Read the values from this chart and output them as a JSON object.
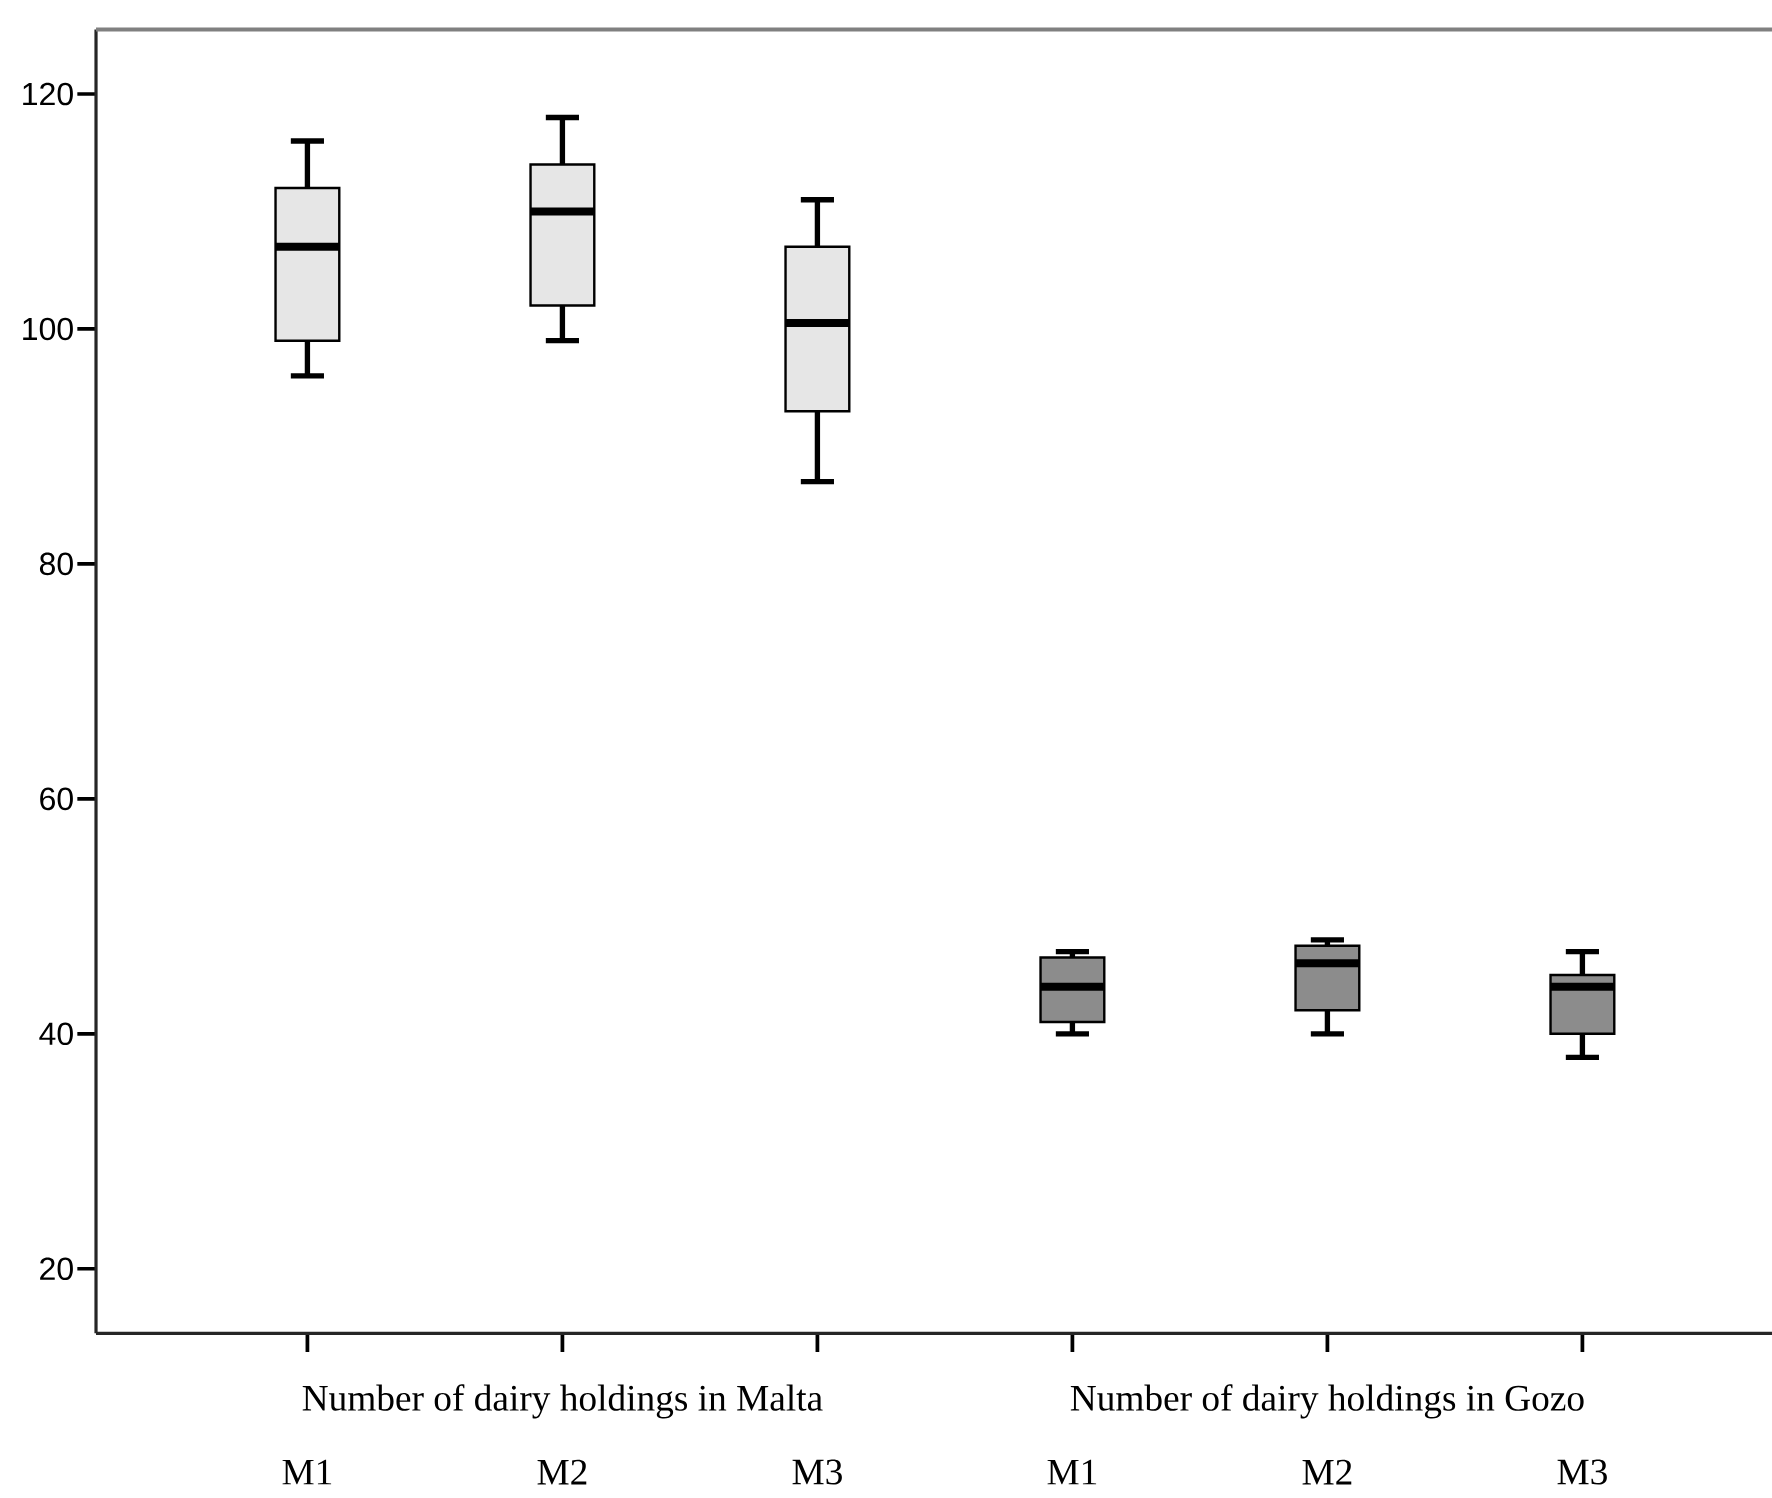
{
  "chart_data": {
    "type": "box",
    "categories": [
      "M1",
      "M2",
      "M3",
      "M1",
      "M2",
      "M3"
    ],
    "series": [
      {
        "color": "#e6e6e6",
        "boxes": [
          {
            "low": 96,
            "q1": 99,
            "median": 107,
            "q3": 112,
            "high": 116
          },
          {
            "low": 99,
            "q1": 102,
            "median": 110,
            "q3": 114,
            "high": 118
          },
          {
            "low": 87,
            "q1": 93,
            "median": 100.5,
            "q3": 107,
            "high": 111
          },
          null,
          null,
          null
        ]
      },
      {
        "color": "#8c8c8c",
        "boxes": [
          null,
          null,
          null,
          {
            "low": 40,
            "q1": 41,
            "median": 44,
            "q3": 46.5,
            "high": 47
          },
          {
            "low": 40,
            "q1": 42,
            "median": 46,
            "q3": 47.5,
            "high": 48
          },
          {
            "low": 38,
            "q1": 40,
            "median": 44,
            "q3": 45,
            "high": 47
          }
        ]
      }
    ],
    "annotations": [
      "Number of dairy holdings in Malta",
      "Number of dairy holdings in Gozo"
    ],
    "ylim": [
      14.5,
      125.5
    ],
    "yticks": [
      20,
      40,
      60,
      80,
      100,
      120
    ]
  }
}
